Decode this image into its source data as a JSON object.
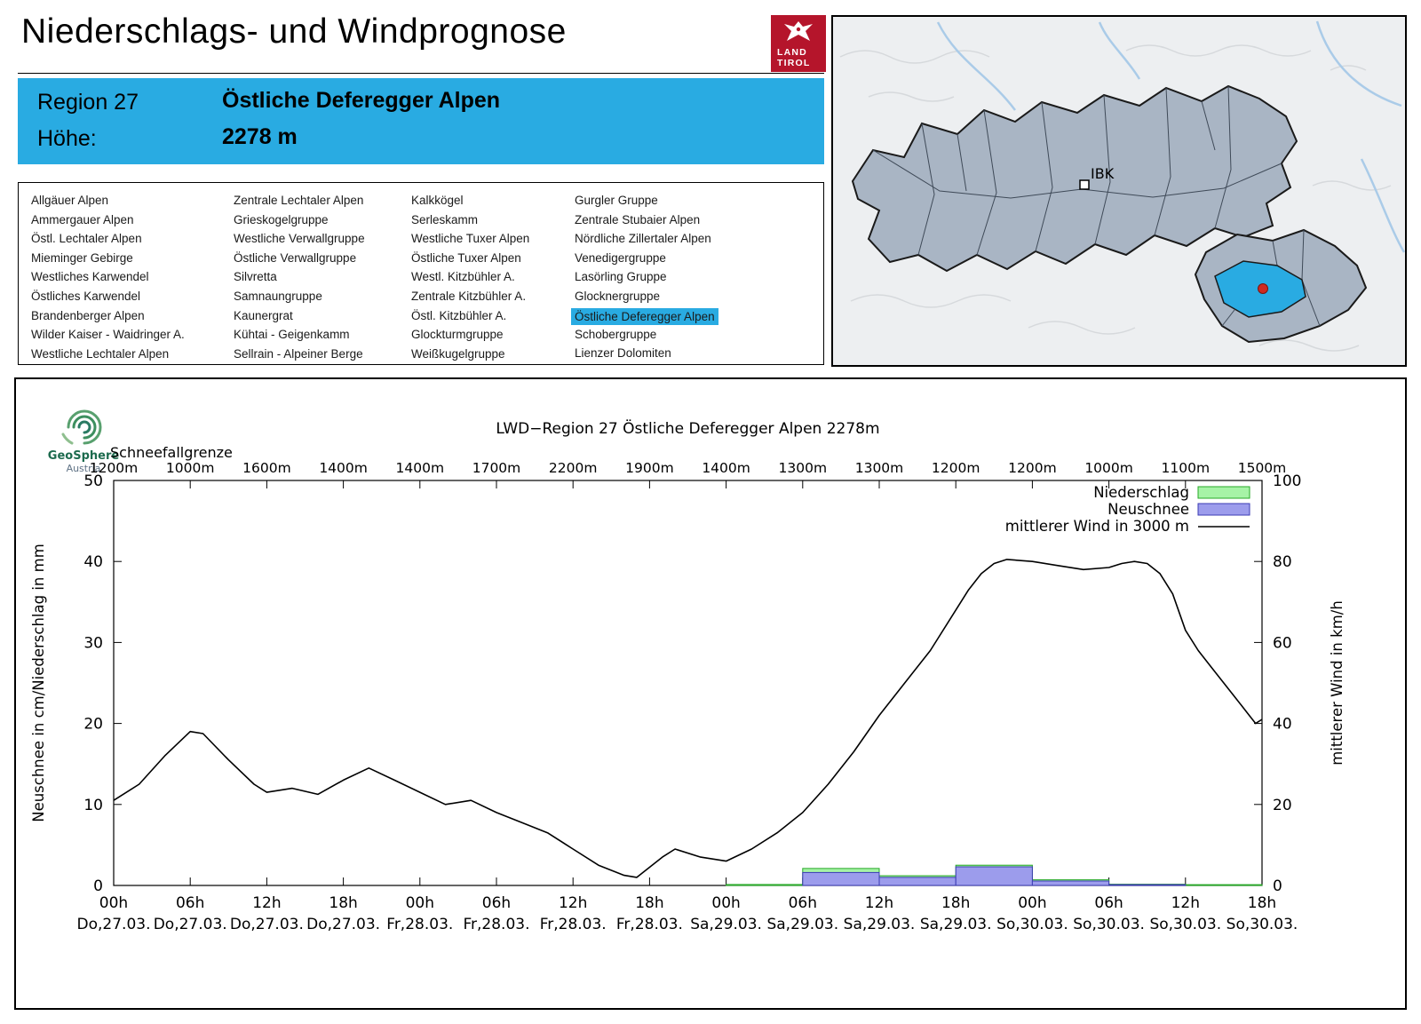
{
  "header": {
    "title": "Niederschlags- und Windprognose",
    "logo": {
      "line1": "LAND",
      "line2": "TIROL"
    }
  },
  "map": {
    "ibk_label": "IBK",
    "highlight_color": "#29abe2",
    "marker_color": "#cf2a21"
  },
  "info_box": {
    "region_label": "Region 27",
    "region_name": "Östliche Deferegger Alpen",
    "altitude_label": "Höhe:",
    "altitude_value": "2278 m",
    "bg_color": "#29abe2"
  },
  "regions": {
    "selected": "Östliche Deferegger Alpen",
    "columns": [
      [
        "Allgäuer Alpen",
        "Ammergauer Alpen",
        "Östl. Lechtaler Alpen",
        "Mieminger Gebirge",
        "Westliches Karwendel",
        "Östliches Karwendel",
        "Brandenberger Alpen",
        "Wilder Kaiser - Waidringer A.",
        "Westliche Lechtaler Alpen"
      ],
      [
        "Zentrale Lechtaler Alpen",
        "Grieskogelgruppe",
        "Westliche Verwallgruppe",
        "Östliche Verwallgruppe",
        "Silvretta",
        "Samnaungruppe",
        "Kaunergrat",
        "Kühtai - Geigenkamm",
        "Sellrain - Alpeiner Berge"
      ],
      [
        "Kalkkögel",
        "Serleskamm",
        "Westliche Tuxer Alpen",
        "Östliche Tuxer Alpen",
        "Westl. Kitzbühler A.",
        "Zentrale Kitzbühler A.",
        "Östl. Kitzbühler A.",
        "Glockturmgruppe",
        "Weißkugelgruppe"
      ],
      [
        "Gurgler Gruppe",
        "Zentrale Stubaier Alpen",
        "Nördliche Zillertaler Alpen",
        "Venedigergruppe",
        "Lasörling Gruppe",
        "Glocknergruppe",
        "Östliche Deferegger Alpen",
        "Schobergruppe",
        "Lienzer Dolomiten"
      ]
    ]
  },
  "geosphere": {
    "line1": "GeoSphere",
    "line2": "Austria"
  },
  "chart_data": {
    "type": "bar+line",
    "title": "LWD−Region 27 Östliche Deferegger Alpen 2278m",
    "snowline_label": "Schneefallgrenze",
    "snowline_values": [
      "1200m",
      "1000m",
      "1600m",
      "1400m",
      "1400m",
      "1700m",
      "2200m",
      "1900m",
      "1400m",
      "1300m",
      "1300m",
      "1200m",
      "1200m",
      "1000m",
      "1100m",
      "1500m"
    ],
    "x_hours_total": 90,
    "x_ticks": [
      {
        "time": "00h",
        "date": "Do,27.03."
      },
      {
        "time": "06h",
        "date": "Do,27.03."
      },
      {
        "time": "12h",
        "date": "Do,27.03."
      },
      {
        "time": "18h",
        "date": "Do,27.03."
      },
      {
        "time": "00h",
        "date": "Fr,28.03."
      },
      {
        "time": "06h",
        "date": "Fr,28.03."
      },
      {
        "time": "12h",
        "date": "Fr,28.03."
      },
      {
        "time": "18h",
        "date": "Fr,28.03."
      },
      {
        "time": "00h",
        "date": "Sa,29.03."
      },
      {
        "time": "06h",
        "date": "Sa,29.03."
      },
      {
        "time": "12h",
        "date": "Sa,29.03."
      },
      {
        "time": "18h",
        "date": "Sa,29.03."
      },
      {
        "time": "00h",
        "date": "So,30.03."
      },
      {
        "time": "06h",
        "date": "So,30.03."
      },
      {
        "time": "12h",
        "date": "So,30.03."
      },
      {
        "time": "18h",
        "date": "So,30.03."
      }
    ],
    "ylabel_left": "Neuschnee in cm/Niederschlag in mm",
    "ylabel_right": "mittlerer Wind in km/h",
    "ylim_left": [
      0,
      50
    ],
    "ylim_right": [
      0,
      100
    ],
    "yticks_left": [
      0,
      10,
      20,
      30,
      40,
      50
    ],
    "yticks_right": [
      0,
      20,
      40,
      60,
      80,
      100
    ],
    "legend": [
      {
        "label": "Niederschlag",
        "type": "box",
        "fill": "#a6f3a6",
        "stroke": "#27a827"
      },
      {
        "label": "Neuschnee",
        "type": "box",
        "fill": "#9c9cec",
        "stroke": "#3c3cb4"
      },
      {
        "label": "mittlerer Wind in 3000 m",
        "type": "line",
        "stroke": "#000000"
      }
    ],
    "niederschlag_mm": [
      {
        "from": 48,
        "to": 54,
        "v": 0.12
      },
      {
        "from": 54,
        "to": 60,
        "v": 2.1
      },
      {
        "from": 60,
        "to": 66,
        "v": 1.2
      },
      {
        "from": 66,
        "to": 72,
        "v": 2.5
      },
      {
        "from": 72,
        "to": 78,
        "v": 0.7
      },
      {
        "from": 78,
        "to": 84,
        "v": 0.15
      },
      {
        "from": 84,
        "to": 90,
        "v": 0.1
      }
    ],
    "neuschnee_cm": [
      {
        "from": 54,
        "to": 60,
        "v": 1.6
      },
      {
        "from": 60,
        "to": 66,
        "v": 1.0
      },
      {
        "from": 66,
        "to": 72,
        "v": 2.3
      },
      {
        "from": 72,
        "to": 78,
        "v": 0.55
      },
      {
        "from": 78,
        "to": 84,
        "v": 0.1
      }
    ],
    "wind_kmh": [
      [
        0,
        21
      ],
      [
        2,
        25
      ],
      [
        4,
        32
      ],
      [
        6,
        38
      ],
      [
        7,
        37.5
      ],
      [
        9,
        31
      ],
      [
        11,
        25
      ],
      [
        12,
        23
      ],
      [
        13,
        23.5
      ],
      [
        14,
        24
      ],
      [
        16,
        22.5
      ],
      [
        18,
        26
      ],
      [
        20,
        29
      ],
      [
        22,
        26
      ],
      [
        24,
        23
      ],
      [
        26,
        20
      ],
      [
        28,
        21
      ],
      [
        30,
        18
      ],
      [
        32,
        15.5
      ],
      [
        34,
        13
      ],
      [
        36,
        9
      ],
      [
        38,
        5
      ],
      [
        40,
        2.5
      ],
      [
        41,
        2
      ],
      [
        43,
        7
      ],
      [
        44,
        9
      ],
      [
        46,
        7
      ],
      [
        48,
        6
      ],
      [
        50,
        9
      ],
      [
        52,
        13
      ],
      [
        54,
        18
      ],
      [
        56,
        25
      ],
      [
        58,
        33
      ],
      [
        60,
        42
      ],
      [
        62,
        50
      ],
      [
        64,
        58
      ],
      [
        66,
        68
      ],
      [
        67,
        73
      ],
      [
        68,
        77
      ],
      [
        69,
        79.5
      ],
      [
        70,
        80.5
      ],
      [
        72,
        80
      ],
      [
        74,
        79
      ],
      [
        76,
        78
      ],
      [
        78,
        78.5
      ],
      [
        79,
        79.5
      ],
      [
        80,
        80
      ],
      [
        81,
        79.5
      ],
      [
        82,
        77
      ],
      [
        83,
        72
      ],
      [
        84,
        63
      ],
      [
        85,
        58
      ],
      [
        86,
        54
      ],
      [
        87,
        50
      ],
      [
        88,
        46
      ],
      [
        89,
        42
      ],
      [
        89.5,
        40
      ],
      [
        90,
        41
      ]
    ]
  }
}
